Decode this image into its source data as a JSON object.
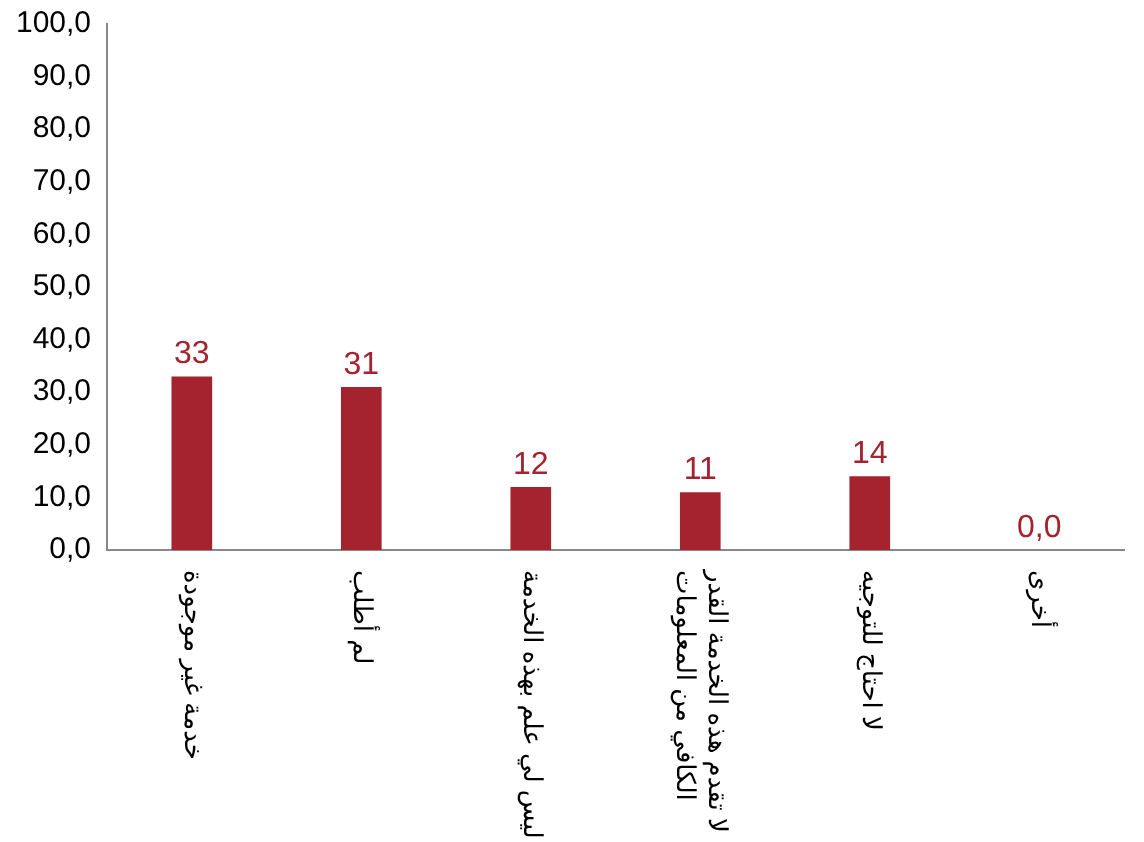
{
  "chart_data": {
    "type": "bar",
    "categories": [
      "خدمة غير موجودة",
      "لم أطلب",
      "ليس لي علم بهذه الخدمة",
      "لا تقدم هذه الخدمة القدر الكافي من المعلومات",
      "لا احتاج للتوجيه",
      "أخرى"
    ],
    "values": [
      33,
      31,
      12,
      11,
      14,
      0
    ],
    "value_labels": [
      "33",
      "31",
      "12",
      "11",
      "14",
      "0,0"
    ],
    "color": "#a4232e",
    "ylim": [
      0,
      100
    ],
    "yticks": [
      {
        "value": 0,
        "label": "0,0"
      },
      {
        "value": 10,
        "label": "10,0"
      },
      {
        "value": 20,
        "label": "20,0"
      },
      {
        "value": 30,
        "label": "30,0"
      },
      {
        "value": 40,
        "label": "40,0"
      },
      {
        "value": 50,
        "label": "50,0"
      },
      {
        "value": 60,
        "label": "60,0"
      },
      {
        "value": 70,
        "label": "70,0"
      },
      {
        "value": 80,
        "label": "80,0"
      },
      {
        "value": 90,
        "label": "90,0"
      },
      {
        "value": 100,
        "label": "100,0"
      }
    ],
    "grid": false,
    "legend": false
  }
}
